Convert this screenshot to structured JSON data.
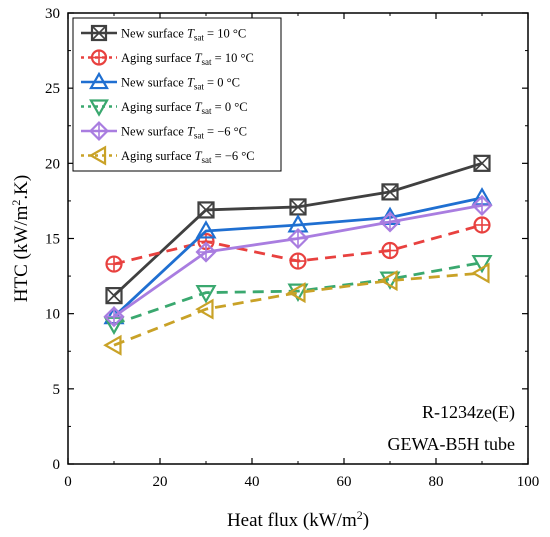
{
  "chart_data": {
    "type": "line",
    "xlabel": {
      "main": "Heat flux (kW/m",
      "sup": "2",
      "tail": ")"
    },
    "ylabel": {
      "main": "HTC (kW/m",
      "sup": "2",
      "tail": ".K)"
    },
    "xlim": [
      0,
      100
    ],
    "ylim": [
      0,
      30
    ],
    "xticks": [
      0,
      20,
      40,
      60,
      80,
      100
    ],
    "yticks": [
      0,
      5,
      10,
      15,
      20,
      25,
      30
    ],
    "grid": false,
    "legend_position": "top-left",
    "annotations": [
      "R-1234ze(E)",
      "GEWA-B5H tube"
    ],
    "series": [
      {
        "name": "New surface T_sat = 10 °C",
        "legend": {
          "pre": "New surface ",
          "sym": "T",
          "sub": "sat",
          "post": " = 10 °C"
        },
        "color": "#404040",
        "marker": "square-x",
        "dash": "solid",
        "x": [
          10,
          30,
          50,
          70,
          90
        ],
        "values": [
          11.2,
          16.9,
          17.1,
          18.1,
          20.0
        ]
      },
      {
        "name": "Aging surface T_sat = 10 °C",
        "legend": {
          "pre": "Aging surface ",
          "sym": "T",
          "sub": "sat",
          "post": " = 10 °C"
        },
        "color": "#e8413f",
        "marker": "circle-plus",
        "dash": "dashed",
        "x": [
          10,
          30,
          50,
          70,
          90
        ],
        "values": [
          13.3,
          14.8,
          13.5,
          14.2,
          15.9
        ]
      },
      {
        "name": "New surface T_sat = 0 °C",
        "legend": {
          "pre": "New surface ",
          "sym": "T",
          "sub": "sat",
          "post": " = 0 °C"
        },
        "color": "#1f6fd1",
        "marker": "triangle-up",
        "dash": "solid",
        "x": [
          10,
          30,
          50,
          70,
          90
        ],
        "values": [
          9.8,
          15.5,
          15.9,
          16.4,
          17.7
        ]
      },
      {
        "name": "Aging surface T_sat = 0 °C",
        "legend": {
          "pre": "Aging surface ",
          "sym": "T",
          "sub": "sat",
          "post": " = 0 °C"
        },
        "color": "#3aa86f",
        "marker": "triangle-down",
        "dash": "dashed",
        "x": [
          10,
          30,
          50,
          70,
          90
        ],
        "values": [
          9.3,
          11.4,
          11.5,
          12.3,
          13.4
        ]
      },
      {
        "name": "New surface T_sat = −6 °C",
        "legend": {
          "pre": "New surface ",
          "sym": "T",
          "sub": "sat",
          "post": " = −6 °C"
        },
        "color": "#a97de0",
        "marker": "diamond-plus",
        "dash": "solid",
        "x": [
          10,
          30,
          50,
          70,
          90
        ],
        "values": [
          9.8,
          14.1,
          15.0,
          16.1,
          17.2
        ]
      },
      {
        "name": "Aging surface T_sat = −6 °C",
        "legend": {
          "pre": "Aging surface ",
          "sym": "T",
          "sub": "sat",
          "post": " = −6 °C"
        },
        "color": "#c9a227",
        "marker": "triangle-left",
        "dash": "dashed",
        "x": [
          10,
          30,
          50,
          70,
          90
        ],
        "values": [
          7.9,
          10.3,
          11.4,
          12.2,
          12.7
        ]
      }
    ]
  }
}
